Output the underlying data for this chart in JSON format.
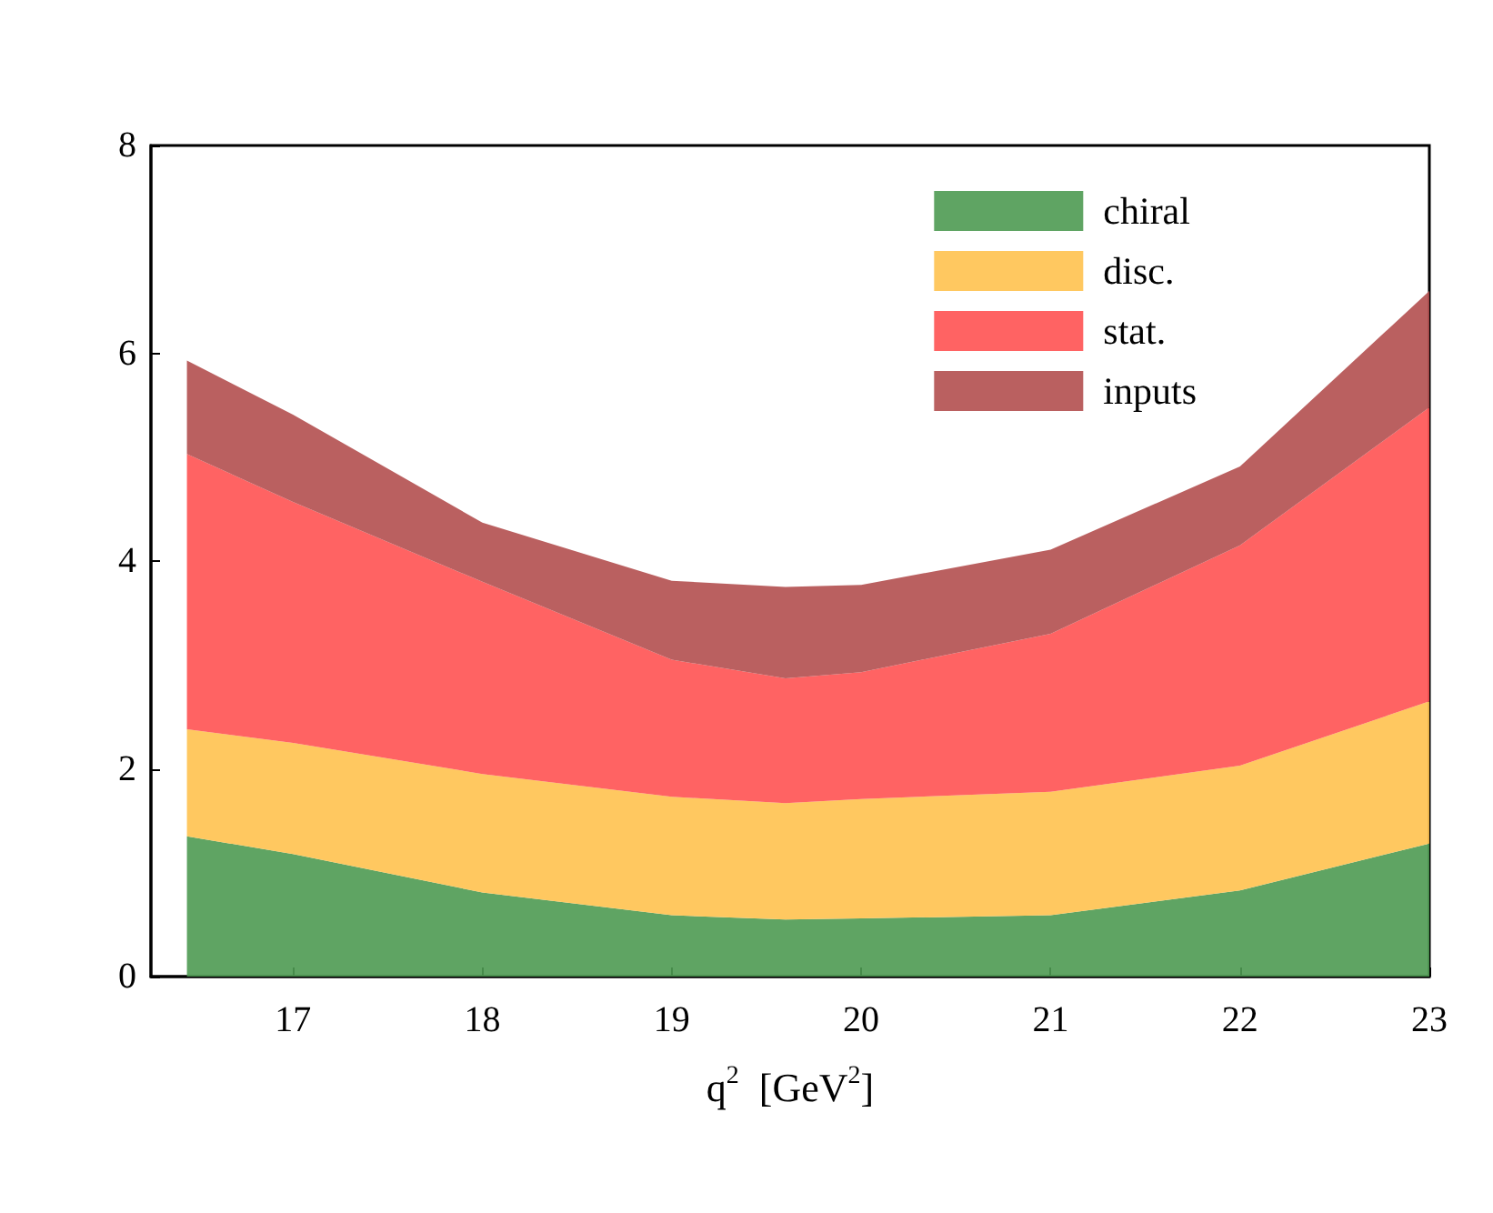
{
  "chart_data": {
    "type": "area",
    "stacked": true,
    "xlabel": "q$^{2}$  [GeV$^{2}$]",
    "x": [
      16.44,
      17,
      18,
      19,
      19.6,
      20,
      21,
      22,
      23
    ],
    "series": [
      {
        "name": "chiral",
        "color": "#4e9a52",
        "values": [
          1.35,
          1.18,
          0.81,
          0.59,
          0.55,
          0.56,
          0.59,
          0.83,
          1.28
        ]
      },
      {
        "name": "disc.",
        "color": "#ffc24f",
        "values": [
          1.03,
          1.07,
          1.14,
          1.14,
          1.12,
          1.15,
          1.19,
          1.2,
          1.37
        ]
      },
      {
        "name": "stat.",
        "color": "#ff5252",
        "values": [
          2.65,
          2.32,
          1.85,
          1.32,
          1.2,
          1.22,
          1.52,
          2.12,
          2.83
        ]
      },
      {
        "name": "inputs",
        "color": "#b24f4f",
        "values": [
          0.9,
          0.84,
          0.57,
          0.76,
          0.88,
          0.84,
          0.81,
          0.76,
          1.12
        ]
      }
    ],
    "xlim": [
      16.25,
      23
    ],
    "xticks": [
      17,
      18,
      19,
      20,
      21,
      22,
      23
    ],
    "ylim": [
      0,
      8
    ],
    "yticks": [
      0,
      2,
      4,
      6,
      8
    ],
    "grid": false,
    "legend": "top right"
  }
}
